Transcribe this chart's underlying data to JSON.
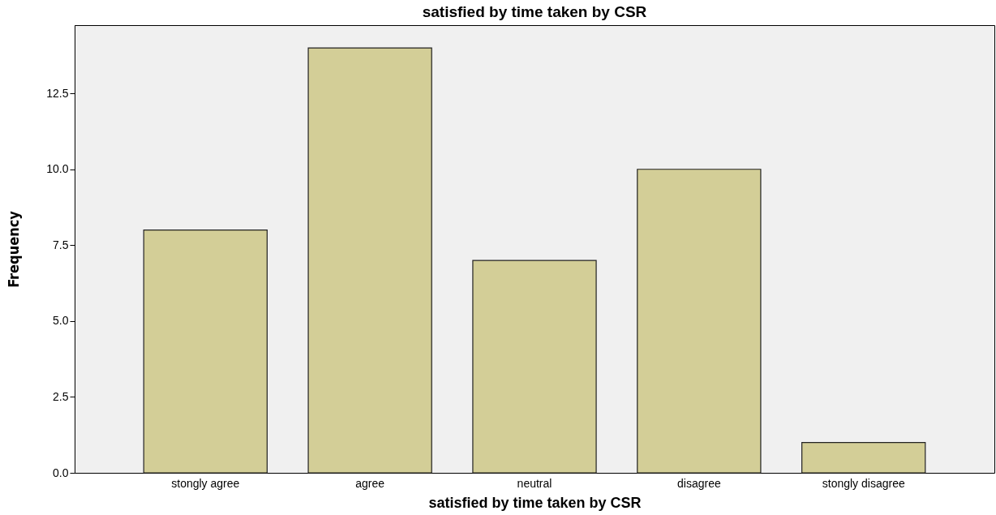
{
  "chart_data": {
    "type": "bar",
    "title": "satisfied by time taken by CSR",
    "xlabel": "satisfied by time taken by CSR",
    "ylabel": "Frequency",
    "categories": [
      "stongly agree",
      "agree",
      "neutral",
      "disagree",
      "stongly disagree"
    ],
    "values": [
      8,
      14,
      7,
      10,
      1
    ],
    "color": "#d3ce97",
    "ylim": [
      0,
      14.75
    ],
    "yticks": [
      {
        "value": 0,
        "label": "0.0"
      },
      {
        "value": 2.5,
        "label": "2.5"
      },
      {
        "value": 5,
        "label": "5.0"
      },
      {
        "value": 7.5,
        "label": "7.5"
      },
      {
        "value": 10,
        "label": "10.0"
      },
      {
        "value": 12.5,
        "label": "12.5"
      }
    ],
    "grid": false
  }
}
